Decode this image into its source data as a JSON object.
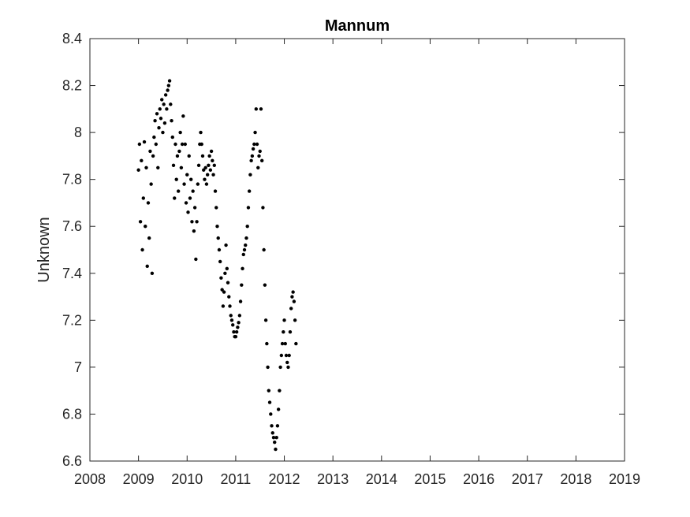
{
  "chart_data": {
    "type": "scatter",
    "title": "Mannum",
    "xlabel": "",
    "ylabel": "Unknown",
    "xlim": [
      2008,
      2019
    ],
    "ylim": [
      6.6,
      8.4
    ],
    "xticks": [
      "2008",
      "2009",
      "2010",
      "2011",
      "2012",
      "2013",
      "2014",
      "2015",
      "2016",
      "2017",
      "2018",
      "2019"
    ],
    "yticks": [
      "6.6",
      "6.8",
      "7",
      "7.2",
      "7.4",
      "7.6",
      "7.8",
      "8",
      "8.2",
      "8.4"
    ],
    "grid": false,
    "marker_color": "#000000",
    "series": [
      {
        "x": [
          2009.0,
          2009.02,
          2009.04,
          2009.06,
          2009.08,
          2009.1,
          2009.12,
          2009.14,
          2009.16,
          2009.18,
          2009.2,
          2009.22,
          2009.24,
          2009.26,
          2009.28,
          2009.3,
          2009.32,
          2009.34,
          2009.36,
          2009.38,
          2009.4,
          2009.42,
          2009.44,
          2009.46,
          2009.48,
          2009.5,
          2009.52,
          2009.54,
          2009.56,
          2009.58,
          2009.6,
          2009.62,
          2009.64,
          2009.66,
          2009.68,
          2009.7,
          2009.72,
          2009.74,
          2009.76,
          2009.78,
          2009.8,
          2009.82,
          2009.84,
          2009.86,
          2009.88,
          2009.9,
          2009.92,
          2009.94,
          2009.96,
          2009.98,
          2010.0,
          2010.02,
          2010.04,
          2010.06,
          2010.08,
          2010.1,
          2010.12,
          2010.14,
          2010.16,
          2010.18,
          2010.2,
          2010.22,
          2010.24,
          2010.26,
          2010.28,
          2010.3,
          2010.32,
          2010.34,
          2010.36,
          2010.38,
          2010.4,
          2010.42,
          2010.44,
          2010.46,
          2010.48,
          2010.5,
          2010.52,
          2010.54,
          2010.56,
          2010.58,
          2010.6,
          2010.62,
          2010.64,
          2010.66,
          2010.68,
          2010.7,
          2010.72,
          2010.74,
          2010.76,
          2010.78,
          2010.8,
          2010.82,
          2010.84,
          2010.86,
          2010.88,
          2010.9,
          2010.92,
          2010.94,
          2010.96,
          2010.98,
          2011.0,
          2011.02,
          2011.04,
          2011.06,
          2011.08,
          2011.1,
          2011.12,
          2011.14,
          2011.16,
          2011.18,
          2011.2,
          2011.22,
          2011.24,
          2011.26,
          2011.28,
          2011.3,
          2011.32,
          2011.34,
          2011.36,
          2011.38,
          2011.4,
          2011.42,
          2011.44,
          2011.46,
          2011.48,
          2011.5,
          2011.52,
          2011.54,
          2011.56,
          2011.58,
          2011.6,
          2011.62,
          2011.64,
          2011.66,
          2011.68,
          2011.7,
          2011.72,
          2011.74,
          2011.76,
          2011.78,
          2011.8,
          2011.82,
          2011.84,
          2011.86,
          2011.88,
          2011.9,
          2011.92,
          2011.94,
          2011.96,
          2011.98,
          2012.0,
          2012.02,
          2012.04,
          2012.06,
          2012.08,
          2012.1,
          2012.12,
          2012.14,
          2012.16,
          2012.18,
          2012.2,
          2012.22,
          2012.24
        ],
        "y": [
          7.84,
          7.95,
          7.62,
          7.88,
          7.5,
          7.72,
          7.96,
          7.6,
          7.85,
          7.43,
          7.7,
          7.55,
          7.92,
          7.78,
          7.4,
          7.9,
          7.98,
          8.05,
          7.95,
          8.08,
          7.85,
          8.02,
          8.1,
          8.06,
          8.14,
          8.0,
          8.12,
          8.04,
          8.16,
          8.1,
          8.18,
          8.2,
          8.22,
          8.12,
          8.05,
          7.98,
          7.86,
          7.72,
          7.95,
          7.8,
          7.9,
          7.75,
          7.92,
          8.0,
          7.85,
          7.95,
          8.07,
          7.78,
          7.95,
          7.7,
          7.82,
          7.66,
          7.9,
          7.72,
          7.8,
          7.62,
          7.75,
          7.58,
          7.68,
          7.46,
          7.62,
          7.78,
          7.86,
          7.95,
          8.0,
          7.95,
          7.9,
          7.84,
          7.8,
          7.85,
          7.78,
          7.82,
          7.86,
          7.9,
          7.84,
          7.92,
          7.88,
          7.82,
          7.86,
          7.75,
          7.68,
          7.6,
          7.55,
          7.5,
          7.45,
          7.38,
          7.33,
          7.26,
          7.32,
          7.4,
          7.52,
          7.42,
          7.36,
          7.3,
          7.26,
          7.22,
          7.2,
          7.18,
          7.15,
          7.13,
          7.13,
          7.15,
          7.17,
          7.19,
          7.22,
          7.28,
          7.35,
          7.42,
          7.48,
          7.5,
          7.52,
          7.55,
          7.6,
          7.68,
          7.75,
          7.82,
          7.88,
          7.9,
          7.93,
          7.95,
          8.0,
          8.1,
          7.95,
          7.85,
          7.9,
          7.92,
          8.1,
          7.88,
          7.68,
          7.5,
          7.35,
          7.2,
          7.1,
          7.0,
          6.9,
          6.85,
          6.8,
          6.75,
          6.72,
          6.7,
          6.68,
          6.65,
          6.7,
          6.75,
          6.82,
          6.9,
          7.0,
          7.05,
          7.1,
          7.15,
          7.2,
          7.1,
          7.05,
          7.02,
          7.0,
          7.05,
          7.15,
          7.25,
          7.3,
          7.32,
          7.28,
          7.2,
          7.1
        ]
      }
    ]
  }
}
